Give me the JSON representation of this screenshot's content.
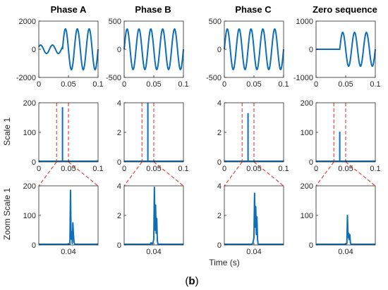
{
  "chart_data": {
    "type": "line",
    "xlabel": "Time (s)",
    "caption_label": "b",
    "colors": {
      "signal": "#0e6fb8",
      "zoom_marker": "#e3261f",
      "axes": "#262626"
    },
    "grid": false,
    "legend": "none",
    "columns": [
      "Phase A",
      "Phase B",
      "Phase C",
      "Zero sequence"
    ],
    "row_labels": [
      "",
      "Scale 1",
      "Zoom Scale 1"
    ],
    "signals": [
      {
        "name": "Phase A",
        "ylim": [
          -2000,
          2000
        ],
        "yticks": [
          "2000",
          "0",
          "-2000"
        ],
        "xlim": [
          0,
          0.1
        ],
        "xticks": [
          "0",
          "0.05",
          "0.1"
        ],
        "pre_fault": {
          "amplitude": 300,
          "frequency_hz": 50,
          "phase_deg": 35
        },
        "fault_time": 0.04,
        "post_fault": {
          "amplitude": 1450,
          "frequency_hz": 50,
          "phase_deg": 0
        }
      },
      {
        "name": "Phase B",
        "ylim": [
          -500,
          500
        ],
        "yticks": [
          "500",
          "0",
          "-500"
        ],
        "xlim": [
          0,
          0.1
        ],
        "xticks": [
          "0",
          "0.05",
          "0.1"
        ],
        "pre_fault": {
          "amplitude": 360,
          "frequency_hz": 50,
          "phase_deg": 0
        },
        "fault_time": 0.04,
        "post_fault": {
          "amplitude": 360,
          "frequency_hz": 50,
          "phase_deg": 0
        }
      },
      {
        "name": "Phase C",
        "ylim": [
          -500,
          500
        ],
        "yticks": [
          "500",
          "0",
          "-500"
        ],
        "xlim": [
          0,
          0.1
        ],
        "xticks": [
          "0",
          "0.05",
          "0.1"
        ],
        "pre_fault": {
          "amplitude": 360,
          "frequency_hz": 50,
          "phase_deg": 0
        },
        "fault_time": 0.04,
        "post_fault": {
          "amplitude": 360,
          "frequency_hz": 50,
          "phase_deg": 0
        }
      },
      {
        "name": "Zero sequence",
        "ylim": [
          -1000,
          1000
        ],
        "yticks": [
          "1000",
          "0",
          "-1000"
        ],
        "xlim": [
          0,
          0.1
        ],
        "xticks": [
          "0",
          "0.05",
          "0.1"
        ],
        "pre_fault": {
          "amplitude": 0,
          "frequency_hz": 50,
          "phase_deg": 0
        },
        "fault_time": 0.04,
        "post_fault": {
          "amplitude": 600,
          "frequency_hz": 50,
          "phase_deg": 0
        }
      }
    ],
    "scale1": [
      {
        "ylim": [
          0,
          200
        ],
        "yticks": [
          "200",
          "100",
          "0"
        ],
        "xlim": [
          0,
          0.1
        ],
        "xticks": [
          "0",
          "0.05",
          "0.1"
        ],
        "spike_x": 0.04,
        "spike_y": 185,
        "zoom_window": [
          0.03,
          0.05
        ]
      },
      {
        "ylim": [
          0,
          4
        ],
        "yticks": [
          "4",
          "2",
          "0"
        ],
        "xlim": [
          0,
          0.1
        ],
        "xticks": [
          "0",
          "0.05",
          "0.1"
        ],
        "spike_x": 0.04,
        "spike_y": 4,
        "zoom_window": [
          0.03,
          0.05
        ]
      },
      {
        "ylim": [
          0,
          4
        ],
        "yticks": [
          "4",
          "2",
          "0"
        ],
        "xlim": [
          0,
          0.1
        ],
        "xticks": [
          "0",
          "0.05",
          "0.1"
        ],
        "spike_x": 0.04,
        "spike_y": 3.3,
        "zoom_window": [
          0.03,
          0.05
        ]
      },
      {
        "ylim": [
          0,
          200
        ],
        "yticks": [
          "200",
          "100",
          "0"
        ],
        "xlim": [
          0,
          0.1
        ],
        "xticks": [
          "0",
          "0.05",
          "0.1"
        ],
        "spike_x": 0.04,
        "spike_y": 102,
        "zoom_window": [
          0.03,
          0.05
        ]
      }
    ],
    "zoom": [
      {
        "ylim": [
          0,
          200
        ],
        "yticks": [
          "200",
          "100",
          "0"
        ],
        "xlim": [
          0.03,
          0.05
        ],
        "xticks": [
          "0.04"
        ],
        "points": [
          [
            0.03,
            0
          ],
          [
            0.0395,
            0
          ],
          [
            0.0397,
            3
          ],
          [
            0.0401,
            0
          ],
          [
            0.0405,
            0
          ],
          [
            0.0407,
            185
          ],
          [
            0.0409,
            20
          ],
          [
            0.0411,
            45
          ],
          [
            0.0413,
            5
          ],
          [
            0.0415,
            75
          ],
          [
            0.0417,
            35
          ],
          [
            0.0419,
            10
          ],
          [
            0.0421,
            0
          ],
          [
            0.05,
            0
          ]
        ]
      },
      {
        "ylim": [
          0,
          4
        ],
        "yticks": [
          "4",
          "2",
          "0"
        ],
        "xlim": [
          0.03,
          0.05
        ],
        "xticks": [
          "0.04"
        ],
        "points": [
          [
            0.03,
            0
          ],
          [
            0.0388,
            0
          ],
          [
            0.0391,
            0.15
          ],
          [
            0.0394,
            0.05
          ],
          [
            0.0398,
            0.2
          ],
          [
            0.04,
            0.4
          ],
          [
            0.0402,
            3.9
          ],
          [
            0.0404,
            1.0
          ],
          [
            0.0406,
            2.7
          ],
          [
            0.0408,
            0.8
          ],
          [
            0.041,
            1.8
          ],
          [
            0.0412,
            0.3
          ],
          [
            0.0414,
            0
          ],
          [
            0.05,
            0
          ]
        ]
      },
      {
        "ylim": [
          0,
          4
        ],
        "yticks": [
          "4",
          "2",
          "0"
        ],
        "xlim": [
          0.03,
          0.05
        ],
        "xticks": [
          "0.04"
        ],
        "points": [
          [
            0.03,
            0
          ],
          [
            0.0392,
            0
          ],
          [
            0.0396,
            0.1
          ],
          [
            0.04,
            0.5
          ],
          [
            0.0402,
            3.5
          ],
          [
            0.0404,
            1.2
          ],
          [
            0.0406,
            2.6
          ],
          [
            0.0408,
            0.7
          ],
          [
            0.041,
            1.9
          ],
          [
            0.0412,
            0.4
          ],
          [
            0.0414,
            0
          ],
          [
            0.05,
            0
          ]
        ]
      },
      {
        "ylim": [
          0,
          200
        ],
        "yticks": [
          "200",
          "100",
          "0"
        ],
        "xlim": [
          0.03,
          0.05
        ],
        "xticks": [
          "0.04"
        ],
        "points": [
          [
            0.03,
            0
          ],
          [
            0.04,
            0
          ],
          [
            0.0404,
            5
          ],
          [
            0.0406,
            100
          ],
          [
            0.0408,
            25
          ],
          [
            0.041,
            40
          ],
          [
            0.0412,
            18
          ],
          [
            0.0414,
            35
          ],
          [
            0.0416,
            8
          ],
          [
            0.0418,
            0
          ],
          [
            0.05,
            0
          ]
        ]
      }
    ]
  }
}
